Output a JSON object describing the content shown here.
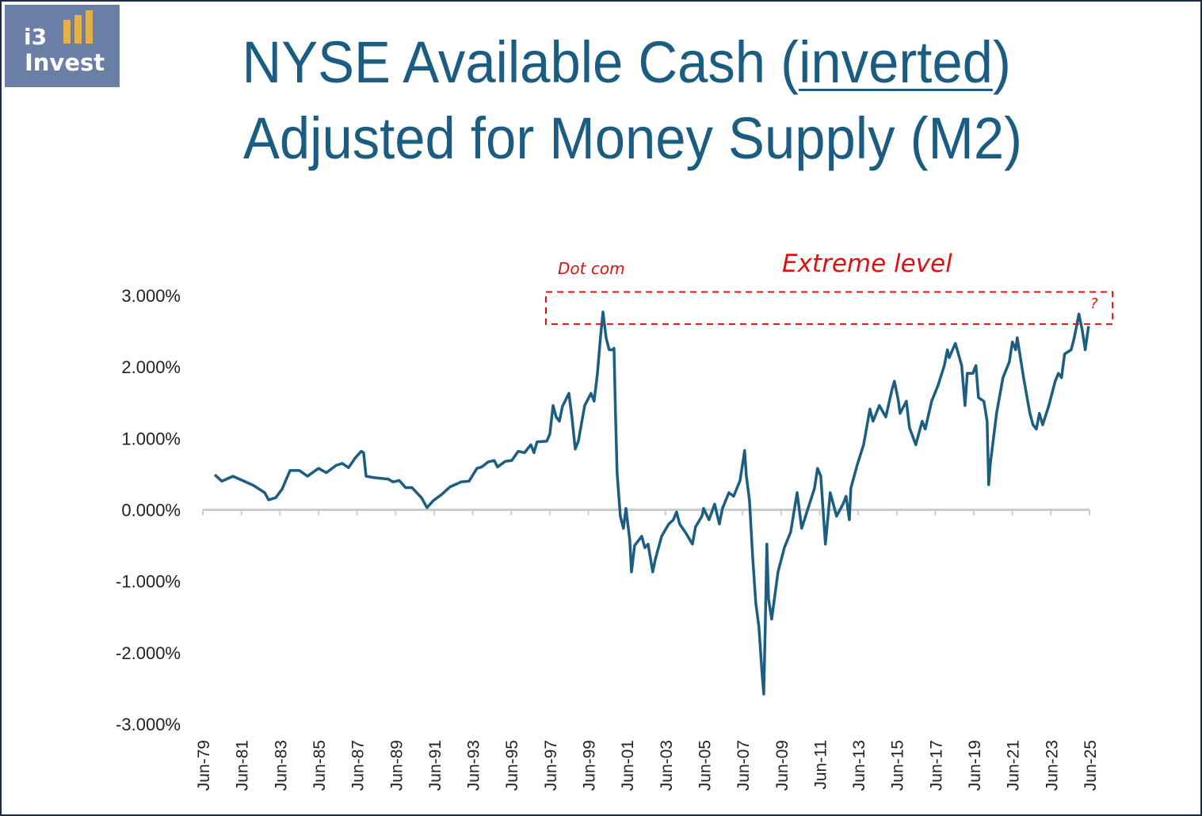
{
  "logo": {
    "line1": "i3",
    "line2": "Invest"
  },
  "title": {
    "line1_before": "NYSE Available Cash (",
    "line1_underlined": "inverted",
    "line1_after": ")",
    "line2": "Adjusted for Money Supply (M2)"
  },
  "annotations": {
    "dot_com": "Dot com",
    "extreme_level": "Extreme level",
    "question": "?",
    "extreme_band": [
      2.6,
      3.05
    ],
    "band_x": [
      1997.3,
      2026.7
    ]
  },
  "colors": {
    "line": "#1b5e82",
    "annotation": "#e01010",
    "axis": "#cccccc",
    "title": "#1b5c82"
  },
  "chart_data": {
    "type": "line",
    "title": "NYSE Available Cash (inverted) Adjusted for Money Supply (M2)",
    "xlabel": "",
    "ylabel": "",
    "ylim": [
      -3,
      3
    ],
    "xlim": [
      1979.5,
      2025.5
    ],
    "yticks": [
      3,
      2,
      1,
      0,
      -1,
      -2,
      -3
    ],
    "ytick_labels": [
      "3.000%",
      "2.000%",
      "1.000%",
      "0.000%",
      "-1.000%",
      "-2.000%",
      "-3.000%"
    ],
    "xtick_labels": [
      "Jun-79",
      "Jun-81",
      "Jun-83",
      "Jun-85",
      "Jun-87",
      "Jun-89",
      "Jun-91",
      "Jun-93",
      "Jun-95",
      "Jun-97",
      "Jun-99",
      "Jun-01",
      "Jun-03",
      "Jun-05",
      "Jun-07",
      "Jun-09",
      "Jun-11",
      "Jun-13",
      "Jun-15",
      "Jun-17",
      "Jun-19",
      "Jun-21",
      "Jun-23",
      "Jun-25"
    ],
    "grid": false,
    "series": [
      {
        "name": "NYSE Available Cash (inverted) / M2",
        "x": [
          1980.12,
          1980.49,
          1981.06,
          1981.64,
          1982.13,
          1982.71,
          1982.91,
          1983.28,
          1983.61,
          1984.02,
          1984.51,
          1984.93,
          1985.5,
          1985.91,
          1986.4,
          1986.73,
          1987.06,
          1987.39,
          1987.72,
          1987.84,
          1987.97,
          1988.38,
          1989.12,
          1989.36,
          1989.69,
          1990.02,
          1990.35,
          1990.84,
          1991.13,
          1991.46,
          1991.87,
          1992.32,
          1992.9,
          1993.31,
          1993.72,
          1993.97,
          1994.3,
          1994.62,
          1994.79,
          1995.2,
          1995.53,
          1995.86,
          1996.19,
          1996.52,
          1996.68,
          1996.84,
          1997.34,
          1997.5,
          1997.67,
          1997.83,
          1998.0,
          1998.16,
          1998.49,
          1998.65,
          1998.82,
          1998.98,
          1999.31,
          1999.64,
          1999.8,
          1999.97,
          2000.13,
          2000.26,
          2000.42,
          2000.58,
          2000.75,
          2000.83,
          2000.91,
          2000.99,
          2001.08,
          2001.16,
          2001.32,
          2001.45,
          2001.65,
          2001.74,
          2001.9,
          2002.27,
          2002.43,
          2002.6,
          2002.84,
          2002.97,
          2003.3,
          2003.67,
          2003.91,
          2004.08,
          2004.24,
          2004.57,
          2004.9,
          2005.06,
          2005.39,
          2005.48,
          2005.76,
          2006.05,
          2006.3,
          2006.46,
          2006.79,
          2007.04,
          2007.37,
          2007.61,
          2007.69,
          2007.86,
          2008.02,
          2008.19,
          2008.35,
          2008.52,
          2008.6,
          2008.68,
          2008.76,
          2008.85,
          2009.01,
          2009.34,
          2009.67,
          2010.0,
          2010.33,
          2010.57,
          2010.9,
          2011.23,
          2011.39,
          2011.56,
          2011.8,
          2012.05,
          2012.38,
          2012.71,
          2012.87,
          2013.04,
          2013.12,
          2013.45,
          2013.78,
          2014.11,
          2014.27,
          2014.6,
          2014.93,
          2015.26,
          2015.38,
          2015.59,
          2015.67,
          2016.0,
          2016.16,
          2016.49,
          2016.82,
          2016.98,
          2017.31,
          2017.64,
          2017.97,
          2018.13,
          2018.22,
          2018.54,
          2018.87,
          2019.04,
          2019.16,
          2019.45,
          2019.61,
          2019.74,
          2020.02,
          2020.19,
          2020.27,
          2020.35,
          2020.68,
          2021.01,
          2021.34,
          2021.5,
          2021.67,
          2021.75,
          2022.08,
          2022.41,
          2022.57,
          2022.74,
          2022.9,
          2023.07,
          2023.39,
          2023.72,
          2023.89,
          2024.05,
          2024.21,
          2024.55,
          2024.71,
          2024.87,
          2024.95,
          2025.12,
          2025.28,
          2025.45
        ],
        "y": [
          0.49,
          0.4,
          0.47,
          0.4,
          0.34,
          0.24,
          0.14,
          0.17,
          0.29,
          0.55,
          0.55,
          0.47,
          0.58,
          0.52,
          0.62,
          0.65,
          0.59,
          0.72,
          0.82,
          0.8,
          0.47,
          0.45,
          0.43,
          0.39,
          0.41,
          0.31,
          0.31,
          0.17,
          0.03,
          0.13,
          0.21,
          0.32,
          0.39,
          0.4,
          0.58,
          0.6,
          0.67,
          0.69,
          0.6,
          0.68,
          0.69,
          0.82,
          0.8,
          0.91,
          0.8,
          0.95,
          0.96,
          1.06,
          1.46,
          1.3,
          1.24,
          1.45,
          1.63,
          1.3,
          0.85,
          0.96,
          1.46,
          1.63,
          1.52,
          1.91,
          2.41,
          2.77,
          2.41,
          2.24,
          2.24,
          2.26,
          1.35,
          0.52,
          0.19,
          -0.09,
          -0.26,
          0.02,
          -0.42,
          -0.87,
          -0.5,
          -0.37,
          -0.53,
          -0.48,
          -0.87,
          -0.7,
          -0.37,
          -0.2,
          -0.14,
          -0.03,
          -0.2,
          -0.33,
          -0.48,
          -0.24,
          -0.09,
          0.02,
          -0.14,
          0.08,
          -0.2,
          0.02,
          0.24,
          0.19,
          0.41,
          0.83,
          0.49,
          0.13,
          -0.64,
          -1.31,
          -1.64,
          -2.31,
          -2.58,
          -1.64,
          -0.48,
          -1.25,
          -1.53,
          -0.87,
          -0.53,
          -0.31,
          0.24,
          -0.26,
          0.02,
          0.3,
          0.58,
          0.47,
          -0.48,
          0.24,
          -0.09,
          0.08,
          0.19,
          -0.14,
          0.3,
          0.63,
          0.91,
          1.41,
          1.24,
          1.46,
          1.3,
          1.69,
          1.8,
          1.52,
          1.35,
          1.52,
          1.15,
          0.91,
          1.24,
          1.13,
          1.52,
          1.74,
          2.02,
          2.24,
          2.13,
          2.33,
          2.02,
          1.46,
          1.91,
          1.91,
          2.02,
          1.57,
          1.52,
          1.24,
          0.35,
          0.63,
          1.35,
          1.85,
          2.07,
          2.35,
          2.24,
          2.41,
          1.85,
          1.35,
          1.19,
          1.13,
          1.35,
          1.19,
          1.46,
          1.8,
          1.91,
          1.85,
          2.18,
          2.24,
          2.41,
          2.63,
          2.74,
          2.52,
          2.24,
          2.57
        ]
      }
    ]
  }
}
